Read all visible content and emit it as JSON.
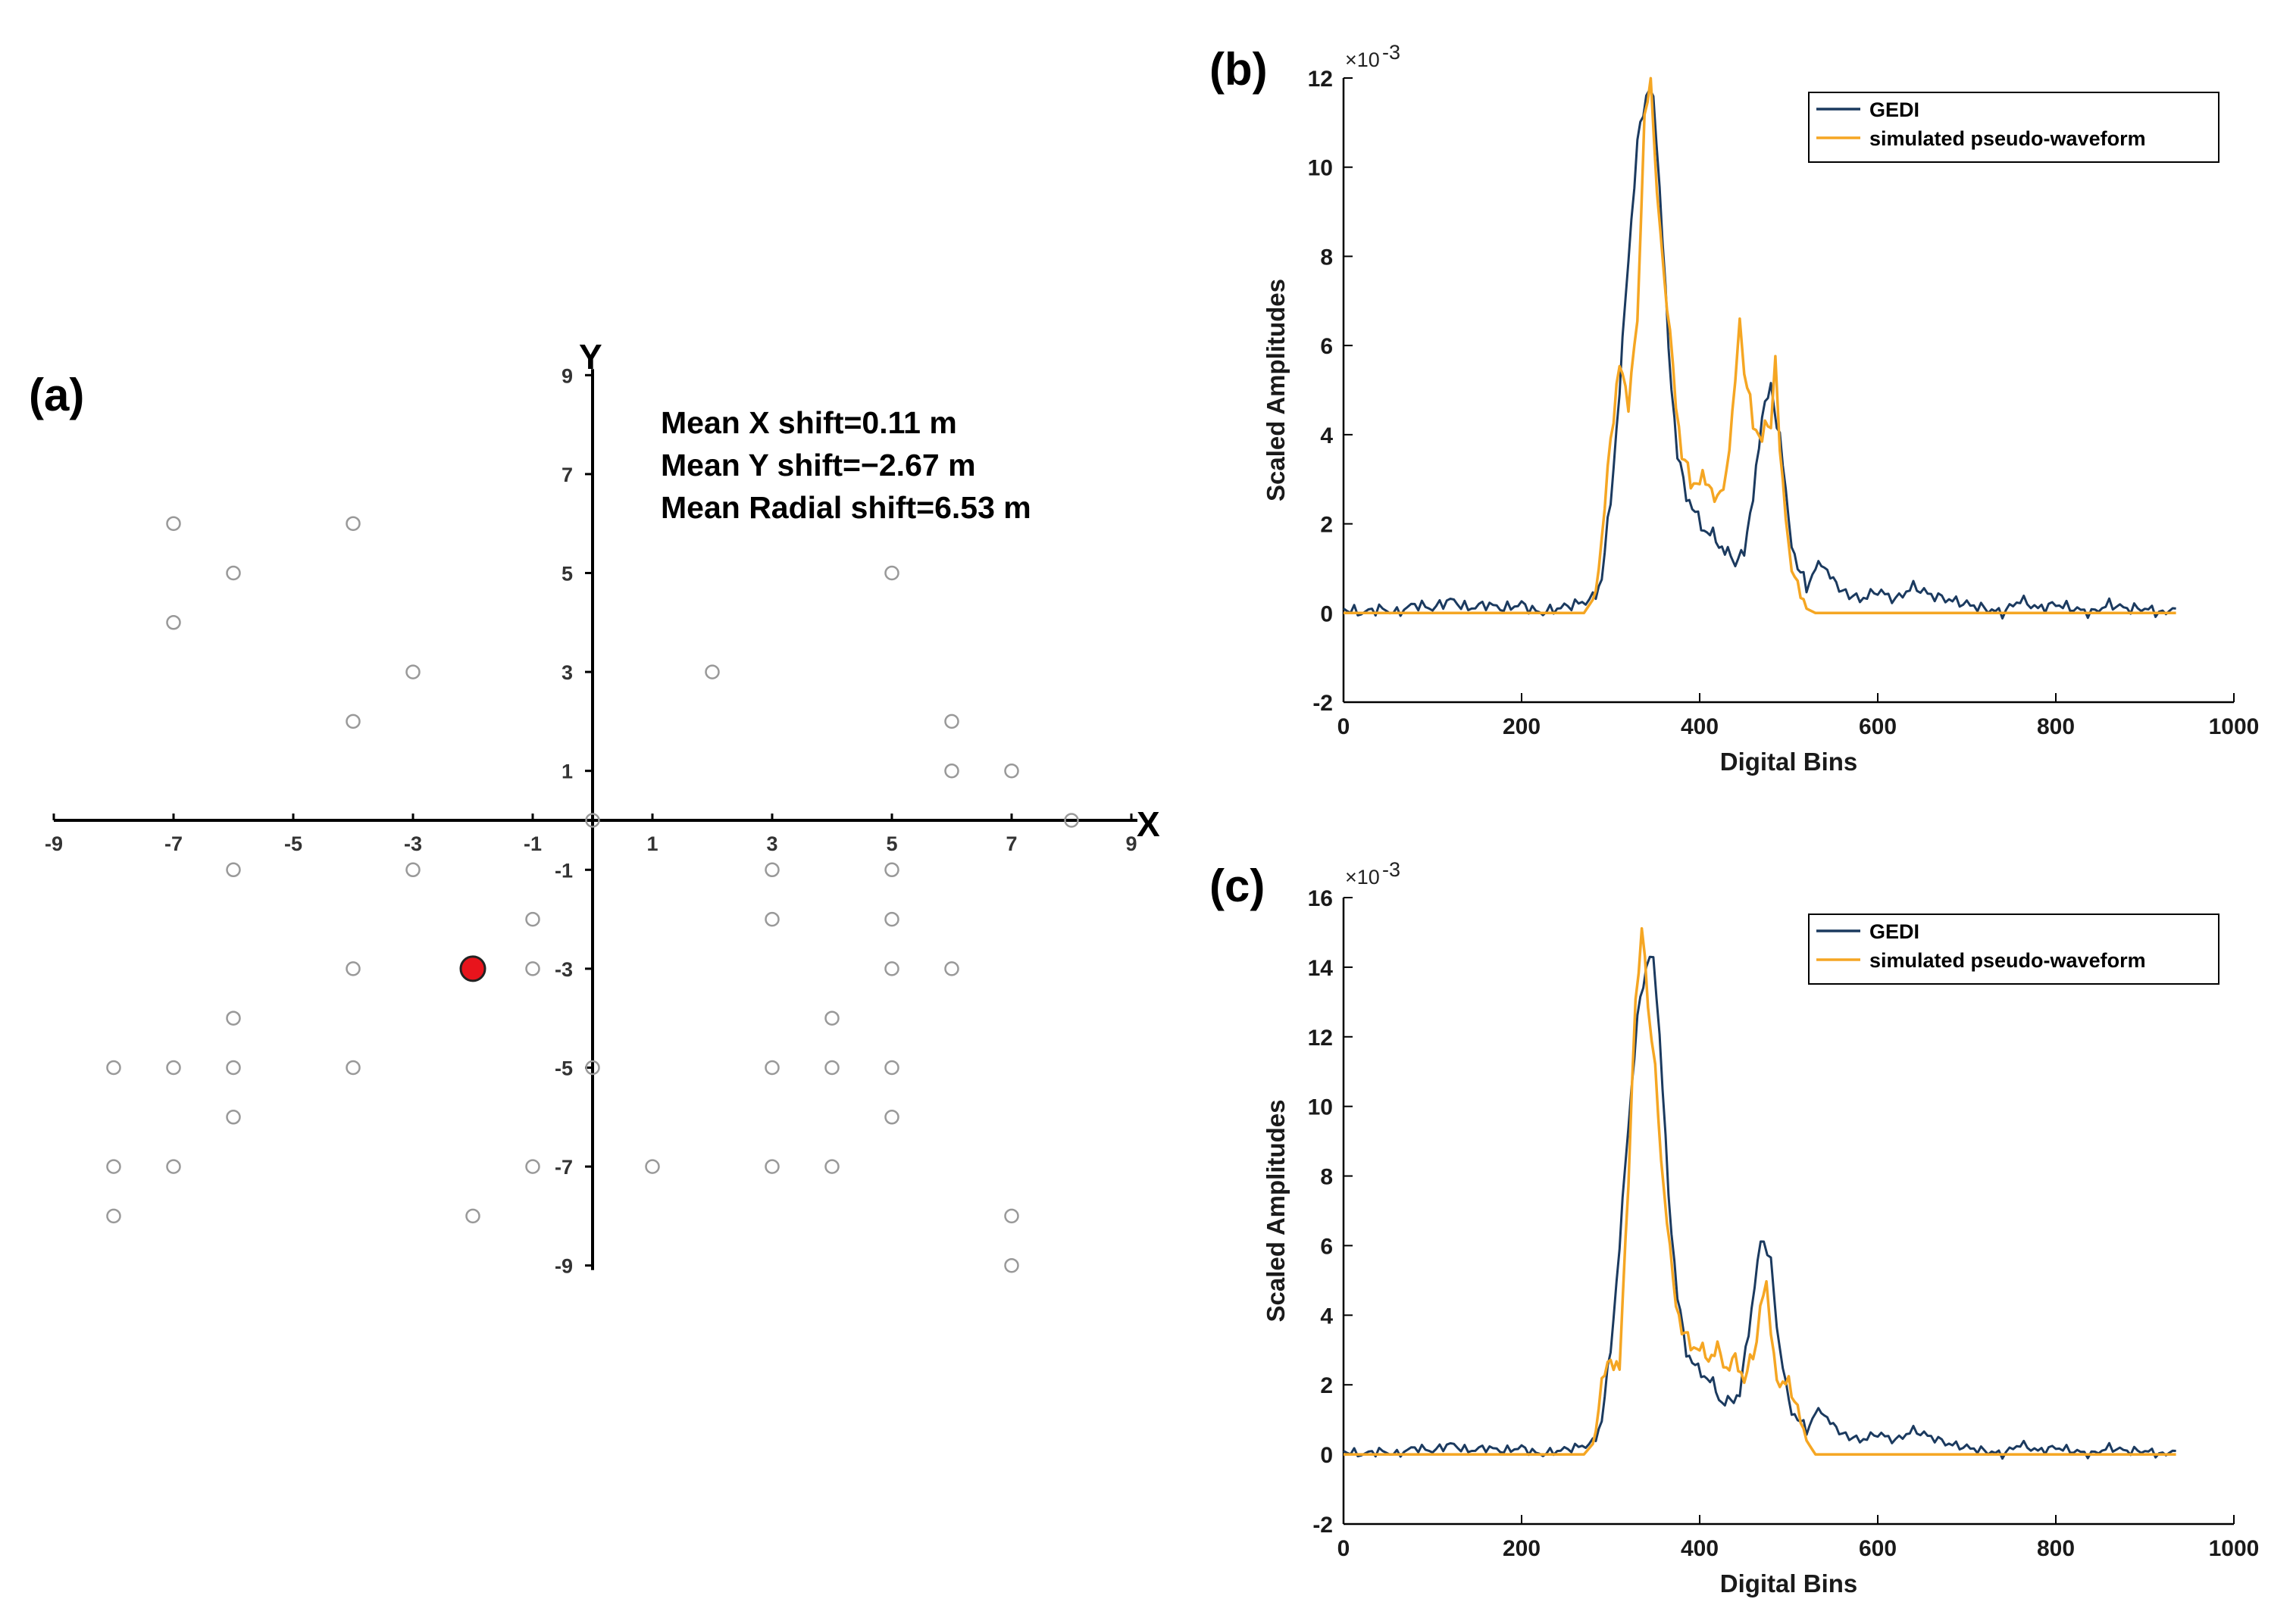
{
  "colors": {
    "gedi": "#1b3a5f",
    "simulated": "#f5a623",
    "marker": "#999999",
    "best": "#e8141c"
  },
  "panel_a": {
    "label": "(a)",
    "x_axis_name": "X",
    "y_axis_name": "Y",
    "annotation_x": "Mean X shift=0.11 m",
    "annotation_y": "Mean Y shift=−2.67 m",
    "annotation_r": "Mean Radial shift=6.53 m"
  },
  "panel_b": {
    "label": "(b)",
    "exponent_base": "×10",
    "exponent_power": "-3",
    "legend": [
      "GEDI",
      "simulated pseudo-waveform"
    ]
  },
  "panel_c": {
    "label": "(c)",
    "exponent_base": "×10",
    "exponent_power": "-3",
    "legend": [
      "GEDI",
      "simulated pseudo-waveform"
    ]
  },
  "chart_data": [
    {
      "id": "a",
      "type": "scatter",
      "title": "",
      "xlabel": "X",
      "ylabel": "Y",
      "xlim": [
        -9,
        9
      ],
      "ylim": [
        -9,
        9
      ],
      "xticks": [
        -9,
        -7,
        -5,
        -3,
        -1,
        1,
        3,
        5,
        7,
        9
      ],
      "xtick_labels": [
        "-9",
        "-7",
        "-5",
        "-3",
        "-1",
        "1",
        "3",
        "5",
        "7",
        "9"
      ],
      "yticks": [
        9,
        7,
        5,
        3,
        1,
        -1,
        -3,
        -5,
        -7,
        -9
      ],
      "ytick_labels": [
        "9",
        "7",
        "5",
        "3",
        "1",
        "-1",
        "-3",
        "-5",
        "-7",
        "-9"
      ],
      "points": [
        [
          -7,
          6
        ],
        [
          -4,
          6
        ],
        [
          -6,
          5
        ],
        [
          5,
          5
        ],
        [
          -7,
          4
        ],
        [
          -3,
          3
        ],
        [
          2,
          3
        ],
        [
          -4,
          2
        ],
        [
          6,
          2
        ],
        [
          6,
          1
        ],
        [
          7,
          1
        ],
        [
          0,
          0
        ],
        [
          8,
          0
        ],
        [
          -6,
          -1
        ],
        [
          -3,
          -1
        ],
        [
          3,
          -1
        ],
        [
          5,
          -1
        ],
        [
          -1,
          -2
        ],
        [
          3,
          -2
        ],
        [
          5,
          -2
        ],
        [
          -4,
          -3
        ],
        [
          -1,
          -3
        ],
        [
          5,
          -3
        ],
        [
          6,
          -3
        ],
        [
          -6,
          -4
        ],
        [
          4,
          -4
        ],
        [
          -8,
          -5
        ],
        [
          -7,
          -5
        ],
        [
          -6,
          -5
        ],
        [
          -4,
          -5
        ],
        [
          0,
          -5
        ],
        [
          3,
          -5
        ],
        [
          4,
          -5
        ],
        [
          5,
          -5
        ],
        [
          -6,
          -6
        ],
        [
          5,
          -6
        ],
        [
          -8,
          -7
        ],
        [
          -7,
          -7
        ],
        [
          -1,
          -7
        ],
        [
          1,
          -7
        ],
        [
          3,
          -7
        ],
        [
          4,
          -7
        ],
        [
          -8,
          -8
        ],
        [
          -2,
          -8
        ],
        [
          7,
          -8
        ],
        [
          7,
          -9
        ]
      ],
      "highlight": [
        [
          -2,
          -3
        ]
      ],
      "annotations": [
        "Mean X shift=0.11 m",
        "Mean Y shift=−2.67 m",
        "Mean Radial shift=6.53 m"
      ]
    },
    {
      "id": "b",
      "type": "line",
      "xlabel": "Digital Bins",
      "ylabel": "Scaled Amplitudes",
      "xlim": [
        0,
        1000
      ],
      "ylim": [
        -2,
        12
      ],
      "y_scale_exponent": -3,
      "xticks": [
        0,
        200,
        400,
        600,
        800,
        1000
      ],
      "xtick_labels": [
        "0",
        "200",
        "400",
        "600",
        "800",
        "1000"
      ],
      "yticks": [
        -2,
        0,
        2,
        4,
        6,
        8,
        10,
        12
      ],
      "ytick_labels": [
        "-2",
        "0",
        "2",
        "4",
        "6",
        "8",
        "10",
        "12"
      ],
      "legend_position": "top-right",
      "series": [
        {
          "name": "GEDI",
          "color": "#1b3a5f",
          "points": [
            [
              0,
              0.1
            ],
            [
              20,
              0.0
            ],
            [
              40,
              0.1
            ],
            [
              60,
              0.0
            ],
            [
              80,
              0.2
            ],
            [
              100,
              0.1
            ],
            [
              120,
              0.3
            ],
            [
              140,
              0.1
            ],
            [
              160,
              0.2
            ],
            [
              180,
              0.1
            ],
            [
              200,
              0.2
            ],
            [
              220,
              0.0
            ],
            [
              240,
              0.1
            ],
            [
              260,
              0.2
            ],
            [
              280,
              0.3
            ],
            [
              290,
              0.8
            ],
            [
              300,
              2.5
            ],
            [
              310,
              5.0
            ],
            [
              320,
              8.0
            ],
            [
              330,
              10.5
            ],
            [
              340,
              11.6
            ],
            [
              348,
              11.7
            ],
            [
              355,
              9.5
            ],
            [
              365,
              6.0
            ],
            [
              375,
              3.5
            ],
            [
              385,
              2.7
            ],
            [
              395,
              2.2
            ],
            [
              405,
              1.9
            ],
            [
              415,
              1.7
            ],
            [
              425,
              1.5
            ],
            [
              435,
              1.2
            ],
            [
              440,
              1.0
            ],
            [
              450,
              1.5
            ],
            [
              460,
              2.5
            ],
            [
              470,
              4.5
            ],
            [
              480,
              5.0
            ],
            [
              490,
              4.0
            ],
            [
              500,
              2.0
            ],
            [
              510,
              1.0
            ],
            [
              520,
              0.6
            ],
            [
              530,
              1.0
            ],
            [
              540,
              1.1
            ],
            [
              550,
              0.7
            ],
            [
              560,
              0.5
            ],
            [
              580,
              0.3
            ],
            [
              600,
              0.5
            ],
            [
              620,
              0.3
            ],
            [
              640,
              0.6
            ],
            [
              660,
              0.4
            ],
            [
              680,
              0.3
            ],
            [
              700,
              0.2
            ],
            [
              720,
              0.1
            ],
            [
              740,
              0.0
            ],
            [
              760,
              0.3
            ],
            [
              780,
              0.1
            ],
            [
              800,
              0.2
            ],
            [
              820,
              0.1
            ],
            [
              840,
              0.0
            ],
            [
              860,
              0.2
            ],
            [
              880,
              0.1
            ],
            [
              900,
              0.1
            ],
            [
              920,
              0.0
            ],
            [
              935,
              0.1
            ]
          ]
        },
        {
          "name": "simulated pseudo-waveform",
          "color": "#f5a623",
          "points": [
            [
              0,
              0.0
            ],
            [
              100,
              0.0
            ],
            [
              200,
              0.0
            ],
            [
              270,
              0.0
            ],
            [
              280,
              0.3
            ],
            [
              290,
              1.5
            ],
            [
              300,
              4.0
            ],
            [
              310,
              5.5
            ],
            [
              320,
              4.8
            ],
            [
              330,
              6.5
            ],
            [
              338,
              11.0
            ],
            [
              345,
              12.0
            ],
            [
              352,
              9.5
            ],
            [
              360,
              7.5
            ],
            [
              370,
              5.5
            ],
            [
              380,
              3.5
            ],
            [
              390,
              3.0
            ],
            [
              400,
              2.9
            ],
            [
              410,
              3.0
            ],
            [
              420,
              2.4
            ],
            [
              430,
              3.2
            ],
            [
              440,
              5.0
            ],
            [
              445,
              6.5
            ],
            [
              450,
              5.5
            ],
            [
              460,
              4.2
            ],
            [
              470,
              4.0
            ],
            [
              480,
              4.2
            ],
            [
              485,
              5.6
            ],
            [
              490,
              3.5
            ],
            [
              500,
              1.5
            ],
            [
              510,
              0.5
            ],
            [
              520,
              0.1
            ],
            [
              530,
              0.0
            ],
            [
              600,
              0.0
            ],
            [
              700,
              0.0
            ],
            [
              800,
              0.0
            ],
            [
              900,
              0.0
            ],
            [
              935,
              0.0
            ]
          ]
        }
      ]
    },
    {
      "id": "c",
      "type": "line",
      "xlabel": "Digital Bins",
      "ylabel": "Scaled Amplitudes",
      "xlim": [
        0,
        1000
      ],
      "ylim": [
        -2,
        16
      ],
      "y_scale_exponent": -3,
      "xticks": [
        0,
        200,
        400,
        600,
        800,
        1000
      ],
      "xtick_labels": [
        "0",
        "200",
        "400",
        "600",
        "800",
        "1000"
      ],
      "yticks": [
        -2,
        0,
        2,
        4,
        6,
        8,
        10,
        12,
        14,
        16
      ],
      "ytick_labels": [
        "-2",
        "0",
        "2",
        "4",
        "6",
        "8",
        "10",
        "12",
        "14",
        "16"
      ],
      "legend_position": "top-right",
      "series": [
        {
          "name": "GEDI",
          "color": "#1b3a5f",
          "points": [
            [
              0,
              0.1
            ],
            [
              20,
              0.0
            ],
            [
              40,
              0.1
            ],
            [
              60,
              0.0
            ],
            [
              80,
              0.2
            ],
            [
              100,
              0.1
            ],
            [
              120,
              0.3
            ],
            [
              140,
              0.1
            ],
            [
              160,
              0.2
            ],
            [
              180,
              0.1
            ],
            [
              200,
              0.2
            ],
            [
              220,
              0.0
            ],
            [
              240,
              0.1
            ],
            [
              260,
              0.2
            ],
            [
              280,
              0.3
            ],
            [
              290,
              1.0
            ],
            [
              300,
              3.0
            ],
            [
              310,
              6.0
            ],
            [
              320,
              9.5
            ],
            [
              330,
              12.5
            ],
            [
              340,
              14.0
            ],
            [
              348,
              14.4
            ],
            [
              355,
              12.0
            ],
            [
              365,
              7.5
            ],
            [
              375,
              4.5
            ],
            [
              385,
              3.0
            ],
            [
              395,
              2.5
            ],
            [
              405,
              2.3
            ],
            [
              415,
              2.0
            ],
            [
              425,
              1.5
            ],
            [
              435,
              1.5
            ],
            [
              445,
              1.8
            ],
            [
              455,
              3.5
            ],
            [
              465,
              5.6
            ],
            [
              472,
              6.2
            ],
            [
              480,
              5.5
            ],
            [
              490,
              3.0
            ],
            [
              500,
              1.5
            ],
            [
              510,
              1.0
            ],
            [
              520,
              0.7
            ],
            [
              530,
              1.2
            ],
            [
              540,
              1.2
            ],
            [
              550,
              0.8
            ],
            [
              560,
              0.6
            ],
            [
              580,
              0.4
            ],
            [
              600,
              0.6
            ],
            [
              620,
              0.4
            ],
            [
              640,
              0.7
            ],
            [
              660,
              0.5
            ],
            [
              680,
              0.3
            ],
            [
              700,
              0.2
            ],
            [
              720,
              0.1
            ],
            [
              740,
              0.0
            ],
            [
              760,
              0.3
            ],
            [
              780,
              0.1
            ],
            [
              800,
              0.2
            ],
            [
              820,
              0.1
            ],
            [
              840,
              0.0
            ],
            [
              860,
              0.2
            ],
            [
              880,
              0.1
            ],
            [
              900,
              0.1
            ],
            [
              920,
              0.0
            ],
            [
              935,
              0.1
            ]
          ]
        },
        {
          "name": "simulated pseudo-waveform",
          "color": "#f5a623",
          "points": [
            [
              0,
              0.0
            ],
            [
              100,
              0.0
            ],
            [
              200,
              0.0
            ],
            [
              270,
              0.0
            ],
            [
              280,
              0.3
            ],
            [
              290,
              2.0
            ],
            [
              300,
              2.8
            ],
            [
              310,
              2.4
            ],
            [
              320,
              8.0
            ],
            [
              328,
              13.0
            ],
            [
              335,
              15.1
            ],
            [
              342,
              13.0
            ],
            [
              350,
              11.0
            ],
            [
              360,
              7.5
            ],
            [
              370,
              5.0
            ],
            [
              380,
              3.5
            ],
            [
              390,
              3.2
            ],
            [
              400,
              3.0
            ],
            [
              410,
              2.8
            ],
            [
              420,
              3.0
            ],
            [
              430,
              2.5
            ],
            [
              440,
              2.7
            ],
            [
              450,
              2.2
            ],
            [
              460,
              2.8
            ],
            [
              468,
              4.0
            ],
            [
              475,
              5.2
            ],
            [
              480,
              3.5
            ],
            [
              490,
              1.8
            ],
            [
              500,
              2.2
            ],
            [
              510,
              1.2
            ],
            [
              520,
              0.4
            ],
            [
              530,
              0.0
            ],
            [
              600,
              0.0
            ],
            [
              700,
              0.0
            ],
            [
              800,
              0.0
            ],
            [
              900,
              0.0
            ],
            [
              935,
              0.0
            ]
          ]
        }
      ]
    }
  ]
}
